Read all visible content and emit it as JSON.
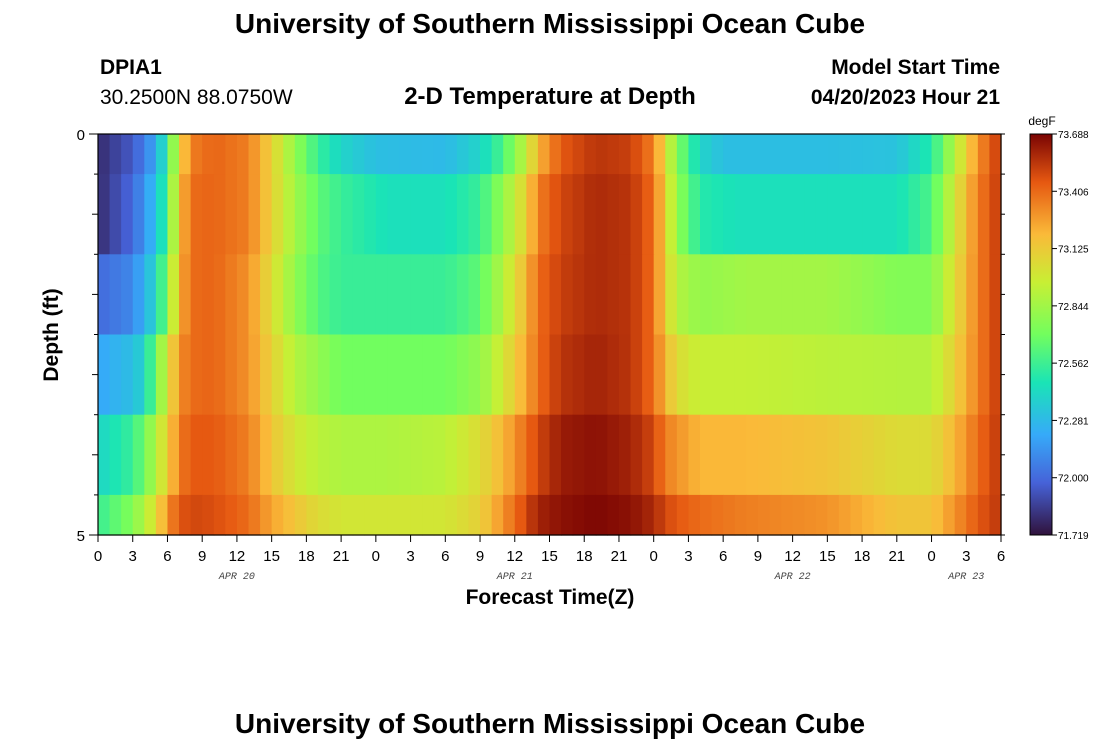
{
  "header": {
    "title": "University of Southern Mississippi Ocean Cube",
    "station": "DPIA1",
    "coords": "30.2500N  88.0750W",
    "subtitle": "2-D Temperature at Depth",
    "model_start_label": "Model Start Time",
    "model_start_value": "04/20/2023 Hour 21"
  },
  "footer": {
    "title": "University of Southern Mississippi Ocean Cube"
  },
  "chart_data": {
    "type": "heatmap",
    "title": "2-D Temperature at Depth",
    "xlabel": "Forecast Time(Z)",
    "ylabel": "Depth (ft)",
    "x_unit": "hours since APR 20 00Z",
    "x_range": [
      0,
      78
    ],
    "x_tick_labels": [
      "0",
      "3",
      "6",
      "9",
      "12",
      "15",
      "18",
      "21",
      "0",
      "3",
      "6",
      "9",
      "12",
      "15",
      "18",
      "21",
      "0",
      "3",
      "6",
      "9",
      "12",
      "15",
      "18",
      "21",
      "0",
      "3",
      "6"
    ],
    "day_labels": [
      {
        "label": "APR 20",
        "hour": 12
      },
      {
        "label": "APR 21",
        "hour": 36
      },
      {
        "label": "APR 22",
        "hour": 60
      },
      {
        "label": "APR 23",
        "hour": 75
      }
    ],
    "y_range": [
      0,
      5
    ],
    "y_tick_labels": [
      "0",
      "5"
    ],
    "depth_layers": [
      0.25,
      1.25,
      2.25,
      3.25,
      4.25,
      4.9
    ],
    "colorbar": {
      "unit": "degF",
      "min": 71.719,
      "max": 73.688,
      "labels": [
        "73.688",
        "73.406",
        "73.125",
        "72.844",
        "72.562",
        "72.281",
        "72.000",
        "71.719"
      ]
    },
    "layer_profiles": [
      {
        "depth_index": 0,
        "knots": [
          [
            0,
            71.8
          ],
          [
            3,
            71.95
          ],
          [
            5,
            72.2
          ],
          [
            6,
            72.55
          ],
          [
            7,
            73.05
          ],
          [
            8,
            73.35
          ],
          [
            10,
            73.42
          ],
          [
            13,
            73.35
          ],
          [
            15,
            73.1
          ],
          [
            17,
            72.8
          ],
          [
            19,
            72.55
          ],
          [
            21,
            72.4
          ],
          [
            24,
            72.3
          ],
          [
            30,
            72.28
          ],
          [
            33,
            72.4
          ],
          [
            35,
            72.6
          ],
          [
            37,
            72.95
          ],
          [
            38,
            73.2
          ],
          [
            40,
            73.45
          ],
          [
            43,
            73.55
          ],
          [
            46,
            73.52
          ],
          [
            48,
            73.35
          ],
          [
            49,
            73.05
          ],
          [
            50,
            72.75
          ],
          [
            52,
            72.4
          ],
          [
            54,
            72.3
          ],
          [
            63,
            72.3
          ],
          [
            69,
            72.32
          ],
          [
            72,
            72.5
          ],
          [
            74,
            72.9
          ],
          [
            76,
            73.3
          ],
          [
            78,
            73.55
          ]
        ]
      },
      {
        "depth_index": 1,
        "knots": [
          [
            0,
            71.8
          ],
          [
            3,
            72.0
          ],
          [
            5,
            72.3
          ],
          [
            6,
            72.6
          ],
          [
            7,
            73.15
          ],
          [
            8,
            73.4
          ],
          [
            10,
            73.42
          ],
          [
            13,
            73.35
          ],
          [
            15,
            73.1
          ],
          [
            17,
            72.85
          ],
          [
            19,
            72.65
          ],
          [
            21,
            72.55
          ],
          [
            25,
            72.45
          ],
          [
            30,
            72.45
          ],
          [
            33,
            72.55
          ],
          [
            35,
            72.8
          ],
          [
            37,
            73.1
          ],
          [
            38,
            73.35
          ],
          [
            40,
            73.5
          ],
          [
            43,
            73.58
          ],
          [
            46,
            73.55
          ],
          [
            48,
            73.4
          ],
          [
            49,
            73.1
          ],
          [
            50,
            72.8
          ],
          [
            52,
            72.5
          ],
          [
            55,
            72.45
          ],
          [
            63,
            72.45
          ],
          [
            69,
            72.45
          ],
          [
            72,
            72.6
          ],
          [
            74,
            73.0
          ],
          [
            76,
            73.35
          ],
          [
            78,
            73.55
          ]
        ]
      },
      {
        "depth_index": 2,
        "knots": [
          [
            0,
            72.0
          ],
          [
            3,
            72.1
          ],
          [
            5,
            72.4
          ],
          [
            6,
            72.75
          ],
          [
            7,
            73.2
          ],
          [
            8,
            73.4
          ],
          [
            10,
            73.42
          ],
          [
            13,
            73.3
          ],
          [
            15,
            73.05
          ],
          [
            17,
            72.8
          ],
          [
            19,
            72.62
          ],
          [
            21,
            72.55
          ],
          [
            25,
            72.55
          ],
          [
            30,
            72.55
          ],
          [
            33,
            72.65
          ],
          [
            35,
            72.9
          ],
          [
            37,
            73.2
          ],
          [
            38,
            73.4
          ],
          [
            40,
            73.52
          ],
          [
            43,
            73.58
          ],
          [
            46,
            73.55
          ],
          [
            48,
            73.4
          ],
          [
            49,
            73.1
          ],
          [
            50,
            72.9
          ],
          [
            52,
            72.8
          ],
          [
            56,
            72.85
          ],
          [
            63,
            72.85
          ],
          [
            69,
            72.75
          ],
          [
            72,
            72.75
          ],
          [
            74,
            73.05
          ],
          [
            76,
            73.35
          ],
          [
            78,
            73.55
          ]
        ]
      },
      {
        "depth_index": 3,
        "knots": [
          [
            0,
            72.2
          ],
          [
            3,
            72.3
          ],
          [
            4,
            72.4
          ],
          [
            5,
            72.7
          ],
          [
            6,
            73.0
          ],
          [
            7,
            73.3
          ],
          [
            8,
            73.4
          ],
          [
            10,
            73.42
          ],
          [
            13,
            73.3
          ],
          [
            15,
            73.1
          ],
          [
            17,
            72.9
          ],
          [
            19,
            72.8
          ],
          [
            21,
            72.7
          ],
          [
            25,
            72.7
          ],
          [
            30,
            72.7
          ],
          [
            33,
            72.8
          ],
          [
            35,
            73.0
          ],
          [
            37,
            73.25
          ],
          [
            38,
            73.4
          ],
          [
            40,
            73.55
          ],
          [
            43,
            73.6
          ],
          [
            46,
            73.55
          ],
          [
            48,
            73.4
          ],
          [
            49,
            73.2
          ],
          [
            50,
            73.05
          ],
          [
            52,
            72.95
          ],
          [
            56,
            72.95
          ],
          [
            63,
            72.92
          ],
          [
            69,
            72.9
          ],
          [
            72,
            72.9
          ],
          [
            74,
            73.1
          ],
          [
            76,
            73.35
          ],
          [
            78,
            73.55
          ]
        ]
      },
      {
        "depth_index": 4,
        "knots": [
          [
            0,
            72.4
          ],
          [
            3,
            72.55
          ],
          [
            4,
            72.7
          ],
          [
            5,
            72.9
          ],
          [
            6,
            73.1
          ],
          [
            7,
            73.35
          ],
          [
            8,
            73.45
          ],
          [
            10,
            73.45
          ],
          [
            13,
            73.35
          ],
          [
            15,
            73.15
          ],
          [
            17,
            73.0
          ],
          [
            19,
            72.92
          ],
          [
            21,
            72.88
          ],
          [
            25,
            72.88
          ],
          [
            30,
            72.92
          ],
          [
            33,
            73.05
          ],
          [
            35,
            73.2
          ],
          [
            37,
            73.4
          ],
          [
            38,
            73.5
          ],
          [
            40,
            73.62
          ],
          [
            43,
            73.65
          ],
          [
            46,
            73.6
          ],
          [
            48,
            73.5
          ],
          [
            49,
            73.35
          ],
          [
            50,
            73.3
          ],
          [
            52,
            73.2
          ],
          [
            56,
            73.2
          ],
          [
            63,
            73.15
          ],
          [
            69,
            73.05
          ],
          [
            72,
            73.05
          ],
          [
            74,
            73.2
          ],
          [
            76,
            73.4
          ],
          [
            78,
            73.55
          ]
        ]
      },
      {
        "depth_index": 5,
        "knots": [
          [
            0,
            72.55
          ],
          [
            3,
            72.75
          ],
          [
            4,
            72.9
          ],
          [
            5,
            73.05
          ],
          [
            6,
            73.3
          ],
          [
            7,
            73.45
          ],
          [
            8,
            73.5
          ],
          [
            10,
            73.48
          ],
          [
            13,
            73.4
          ],
          [
            15,
            73.25
          ],
          [
            17,
            73.15
          ],
          [
            19,
            73.05
          ],
          [
            21,
            73.0
          ],
          [
            25,
            73.0
          ],
          [
            30,
            73.0
          ],
          [
            33,
            73.1
          ],
          [
            35,
            73.3
          ],
          [
            37,
            73.5
          ],
          [
            38,
            73.6
          ],
          [
            40,
            73.65
          ],
          [
            43,
            73.68
          ],
          [
            46,
            73.65
          ],
          [
            48,
            73.58
          ],
          [
            49,
            73.5
          ],
          [
            50,
            73.45
          ],
          [
            52,
            73.4
          ],
          [
            56,
            73.35
          ],
          [
            63,
            73.3
          ],
          [
            69,
            73.15
          ],
          [
            72,
            73.15
          ],
          [
            74,
            73.3
          ],
          [
            76,
            73.45
          ],
          [
            78,
            73.55
          ]
        ]
      }
    ]
  }
}
